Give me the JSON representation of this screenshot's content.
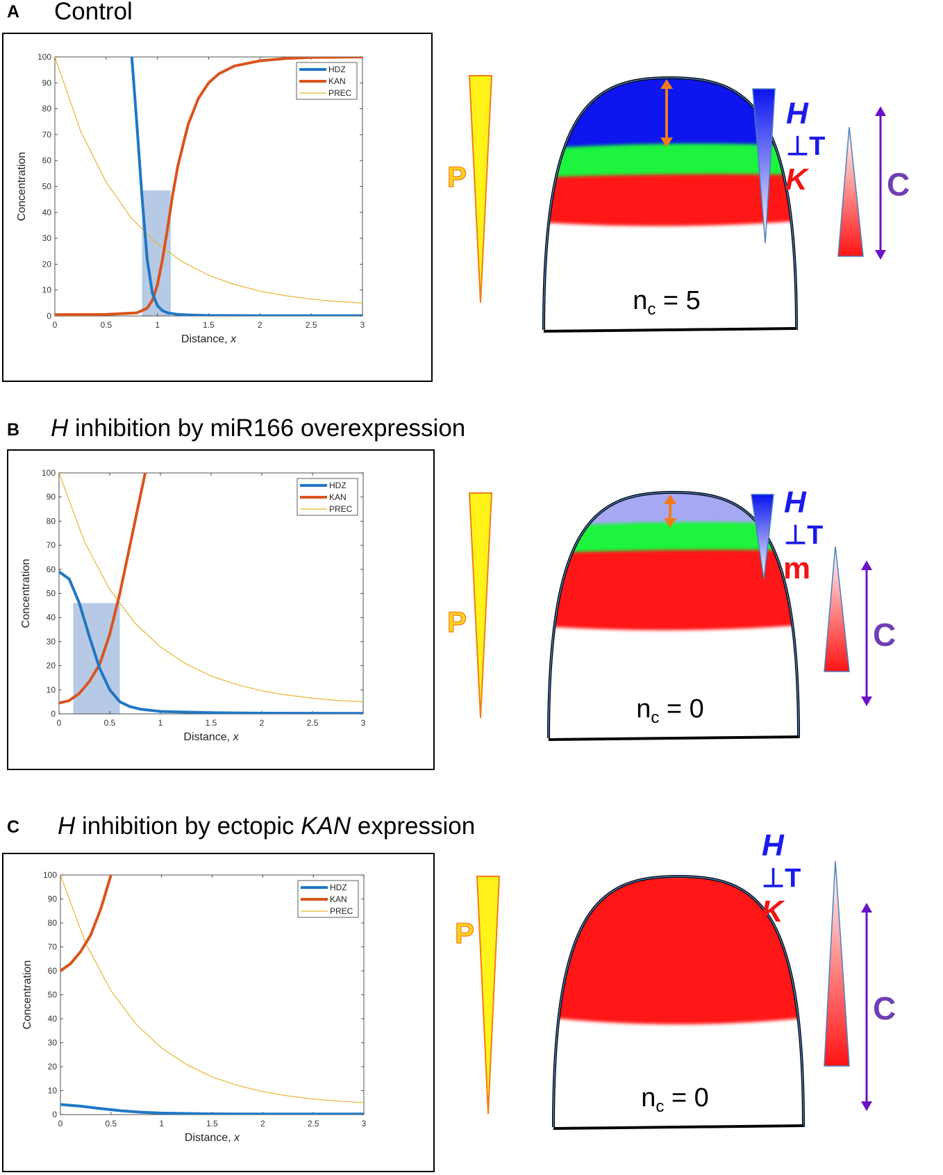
{
  "panels": [
    {
      "letter": "A",
      "title_prefix": "",
      "title_text": "Control",
      "title_em": "",
      "title_suffix": ""
    },
    {
      "letter": "B",
      "title_prefix": "H",
      "title_text": " inhibition by miR166 overexpression",
      "title_em": "",
      "title_suffix": ""
    },
    {
      "letter": "C",
      "title_prefix": "H",
      "title_text": " inhibition by ectopic ",
      "title_em": "KAN",
      "title_suffix": " expression"
    }
  ],
  "chart_data": [
    {
      "type": "line",
      "panel": "A",
      "xlabel": "Distance, ",
      "xlabel_var": "x",
      "ylabel": "Concentration",
      "xlim": [
        0,
        3
      ],
      "ylim": [
        0,
        100
      ],
      "xticks": [
        0,
        0.5,
        1,
        1.5,
        2,
        2.5,
        3
      ],
      "xtick_labels": [
        "0",
        "0.5",
        "1",
        "1.5",
        "2",
        "2.5",
        "3"
      ],
      "yticks": [
        0,
        10,
        20,
        30,
        40,
        50,
        60,
        70,
        80,
        90,
        100
      ],
      "ytick_labels": [
        "0",
        "10",
        "20",
        "30",
        "40",
        "50",
        "60",
        "70",
        "80",
        "90",
        "100"
      ],
      "legend": [
        "HDZ",
        "KAN",
        "PREC"
      ],
      "legend_position": "top-right",
      "shaded_region": {
        "x": [
          0.85,
          1.13
        ],
        "y": [
          0,
          48.5
        ]
      },
      "series": [
        {
          "name": "HDZ",
          "color": "#1f77c4",
          "x": [
            0.75,
            0.8,
            0.85,
            0.9,
            0.95,
            1.0,
            1.05,
            1.1,
            1.2,
            1.3,
            1.5,
            2.0,
            3.0
          ],
          "y": [
            100,
            74,
            46,
            22,
            9,
            4,
            2,
            1.2,
            0.6,
            0.4,
            0.2,
            0.1,
            0.1
          ]
        },
        {
          "name": "KAN",
          "color": "#d9541d",
          "x": [
            0,
            0.5,
            0.8,
            0.9,
            0.95,
            1.0,
            1.05,
            1.1,
            1.15,
            1.2,
            1.3,
            1.4,
            1.5,
            1.6,
            1.75,
            2.0,
            2.25,
            2.5,
            3.0
          ],
          "y": [
            0.5,
            0.6,
            1.2,
            3,
            6,
            12,
            22,
            34,
            47,
            58,
            74,
            84,
            90,
            93.5,
            96.5,
            98.5,
            99.4,
            99.8,
            100
          ]
        },
        {
          "name": "PREC",
          "color": "#e8b430",
          "x": [
            0,
            0.25,
            0.5,
            0.75,
            1.0,
            1.25,
            1.5,
            1.75,
            2.0,
            2.25,
            2.5,
            2.75,
            3.0
          ],
          "y": [
            100,
            71.5,
            51.7,
            37.6,
            27.8,
            20.8,
            15.7,
            12.2,
            9.6,
            7.8,
            6.5,
            5.6,
            5.0
          ]
        }
      ]
    },
    {
      "type": "line",
      "panel": "B",
      "xlabel": "Distance, ",
      "xlabel_var": "x",
      "ylabel": "Concentration",
      "xlim": [
        0,
        3
      ],
      "ylim": [
        0,
        100
      ],
      "xticks": [
        0,
        0.5,
        1,
        1.5,
        2,
        2.5,
        3
      ],
      "xtick_labels": [
        "0",
        "0.5",
        "1",
        "1.5",
        "2",
        "2.5",
        "3"
      ],
      "yticks": [
        0,
        10,
        20,
        30,
        40,
        50,
        60,
        70,
        80,
        90,
        100
      ],
      "ytick_labels": [
        "0",
        "10",
        "20",
        "30",
        "40",
        "50",
        "60",
        "70",
        "80",
        "90",
        "100"
      ],
      "legend": [
        "HDZ",
        "KAN",
        "PREC"
      ],
      "legend_position": "top-right",
      "shaded_region": {
        "x": [
          0.14,
          0.6
        ],
        "y": [
          0,
          46
        ]
      },
      "series": [
        {
          "name": "HDZ",
          "color": "#1f77c4",
          "x": [
            0,
            0.1,
            0.2,
            0.3,
            0.4,
            0.5,
            0.6,
            0.7,
            0.8,
            1.0,
            1.5,
            2.0,
            3.0
          ],
          "y": [
            59,
            56,
            46,
            32,
            19,
            10,
            5,
            3,
            2,
            1,
            0.5,
            0.3,
            0.2
          ]
        },
        {
          "name": "KAN",
          "color": "#d9541d",
          "x": [
            0,
            0.1,
            0.2,
            0.3,
            0.4,
            0.5,
            0.6,
            0.7,
            0.8,
            0.85
          ],
          "y": [
            4.5,
            5.5,
            8.5,
            13.5,
            20.5,
            33,
            50,
            70,
            90,
            100
          ]
        },
        {
          "name": "PREC",
          "color": "#e8b430",
          "x": [
            0,
            0.25,
            0.5,
            0.75,
            1.0,
            1.25,
            1.5,
            1.75,
            2.0,
            2.25,
            2.5,
            2.75,
            3.0
          ],
          "y": [
            100,
            71.5,
            51.7,
            37.6,
            27.8,
            20.8,
            15.7,
            12.2,
            9.6,
            7.8,
            6.5,
            5.6,
            5.0
          ]
        }
      ]
    },
    {
      "type": "line",
      "panel": "C",
      "xlabel": "Distance, ",
      "xlabel_var": "x",
      "ylabel": "Concentration",
      "xlim": [
        0,
        3
      ],
      "ylim": [
        0,
        100
      ],
      "xticks": [
        0,
        0.5,
        1,
        1.5,
        2,
        2.5,
        3
      ],
      "xtick_labels": [
        "0",
        "0.5",
        "1",
        "1.5",
        "2",
        "2.5",
        "3"
      ],
      "yticks": [
        0,
        10,
        20,
        30,
        40,
        50,
        60,
        70,
        80,
        90,
        100
      ],
      "ytick_labels": [
        "0",
        "10",
        "20",
        "30",
        "40",
        "50",
        "60",
        "70",
        "80",
        "90",
        "100"
      ],
      "legend": [
        "HDZ",
        "KAN",
        "PREC"
      ],
      "legend_position": "top-right",
      "shaded_region": null,
      "series": [
        {
          "name": "HDZ",
          "color": "#1f77c4",
          "x": [
            0,
            0.2,
            0.4,
            0.6,
            0.8,
            1.0,
            1.5,
            2.0,
            3.0
          ],
          "y": [
            4.2,
            3.5,
            2.5,
            1.6,
            1.0,
            0.6,
            0.3,
            0.2,
            0.2
          ]
        },
        {
          "name": "KAN",
          "color": "#d9541d",
          "x": [
            0,
            0.1,
            0.2,
            0.3,
            0.4,
            0.5
          ],
          "y": [
            60,
            63,
            68,
            75,
            86,
            100
          ]
        },
        {
          "name": "PREC",
          "color": "#e8b430",
          "x": [
            0,
            0.25,
            0.5,
            0.75,
            1.0,
            1.25,
            1.5,
            1.75,
            2.0,
            2.25,
            2.5,
            2.75,
            3.0
          ],
          "y": [
            100,
            71.5,
            51.7,
            37.6,
            27.8,
            20.8,
            15.7,
            12.2,
            9.6,
            7.8,
            6.5,
            5.6,
            5.0
          ]
        }
      ]
    }
  ],
  "schematics": [
    {
      "panel": "A",
      "p_label": "P",
      "h_label": "H",
      "t_label": "⊥T",
      "k_label": "K",
      "k_italic": true,
      "c_label": "C",
      "nc_base": "n",
      "nc_sub": "c",
      "nc_rest": " = 5",
      "has_blue": true,
      "blue_color": "#0a14ee"
    },
    {
      "panel": "B",
      "p_label": "P",
      "h_label": "H",
      "t_label": "⊥T",
      "k_label": "m",
      "k_italic": false,
      "c_label": "C",
      "nc_base": "n",
      "nc_sub": "c",
      "nc_rest": " = 0",
      "has_blue": true,
      "blue_color": "#a6a8f4"
    },
    {
      "panel": "C",
      "p_label": "P",
      "h_label": "H",
      "t_label": "⊥T",
      "k_label": "K",
      "k_italic": true,
      "c_label": "C",
      "nc_base": "n",
      "nc_sub": "c",
      "nc_rest": " = 0",
      "has_blue": false,
      "blue_color": ""
    }
  ],
  "colors": {
    "hdz": "#1f77c4",
    "kan": "#d9541d",
    "prec": "#e8b430",
    "shade": "#9fb8dc",
    "p_gradient": "#fff31a",
    "k_red": "#ff1414",
    "green": "#1ef43c",
    "purple": "#6a12c8",
    "orange": "#f27b17",
    "h_label": "#1a1aee",
    "k_label": "#f01414",
    "c_label": "#6e3fb4",
    "p_label": "#ffd21e"
  }
}
